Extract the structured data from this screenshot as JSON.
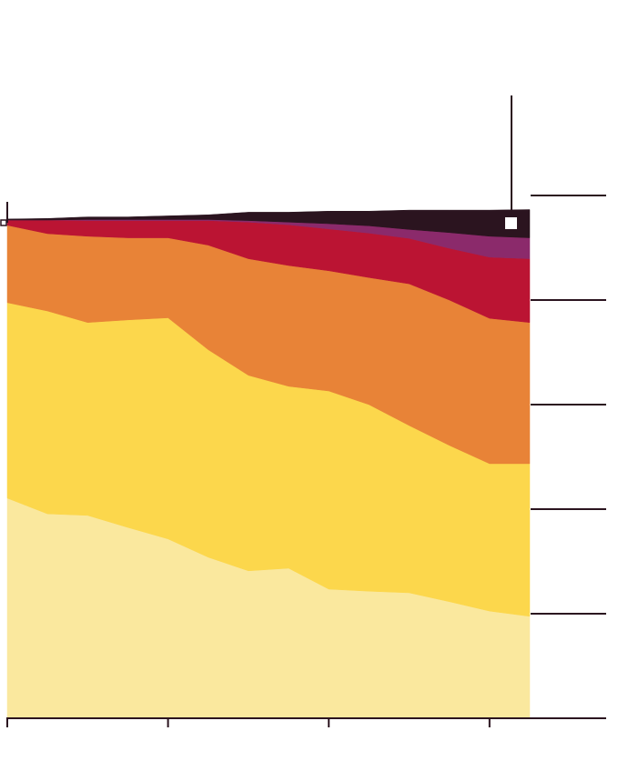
{
  "chart_data": {
    "type": "area",
    "stacked": true,
    "x": [
      0,
      2.5,
      5,
      7.5,
      10,
      12.5,
      15,
      17.5,
      20,
      22.5,
      25,
      27.5,
      30,
      32.5
    ],
    "xlim": [
      0,
      32.5
    ],
    "xticks": [
      0,
      10,
      20,
      30
    ],
    "ylim": [
      0,
      100
    ],
    "yticks": [
      20,
      40,
      60,
      80,
      100
    ],
    "series": [
      {
        "color": "#fae89e",
        "values": [
          42.1,
          39.1,
          38.8,
          36.5,
          34.3,
          30.8,
          28.2,
          28.7,
          24.7,
          24.3,
          24.0,
          22.3,
          20.5,
          19.5
        ]
      },
      {
        "color": "#fcd74c",
        "values": [
          37.4,
          38.8,
          36.9,
          39.7,
          42.3,
          39.7,
          37.4,
          34.8,
          37.9,
          35.7,
          32.0,
          29.9,
          28.2,
          29.2
        ]
      },
      {
        "color": "#e88337",
        "values": [
          14.8,
          14.8,
          16.5,
          15.7,
          15.3,
          20.0,
          22.3,
          23.1,
          23.0,
          24.3,
          27.1,
          27.8,
          27.8,
          27.0
        ]
      },
      {
        "color": "#bb1433",
        "values": [
          1.0,
          2.6,
          3.0,
          3.3,
          3.3,
          4.7,
          7.0,
          7.8,
          8.0,
          8.5,
          8.7,
          9.9,
          11.7,
          12.2
        ]
      },
      {
        "color": "#8b2a6b",
        "values": [
          0,
          0,
          0.2,
          0.2,
          0.2,
          0.2,
          0.3,
          0.5,
          1.0,
          1.4,
          1.7,
          3.0,
          4.0,
          4.0
        ]
      },
      {
        "color": "#2b141f",
        "values": [
          0.2,
          0.3,
          0.5,
          0.5,
          0.7,
          0.9,
          1.6,
          1.9,
          2.4,
          2.8,
          3.7,
          4.3,
          5.0,
          5.4
        ]
      }
    ]
  }
}
